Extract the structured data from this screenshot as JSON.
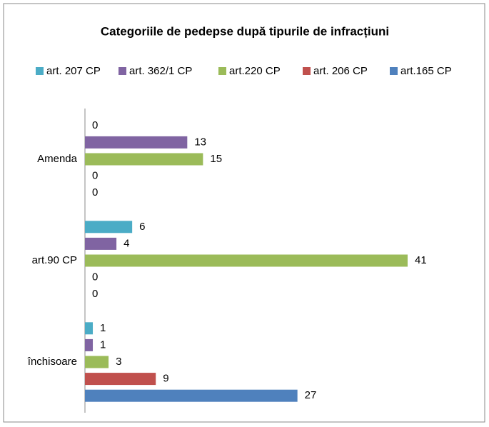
{
  "chart_data": {
    "type": "barh",
    "title": "Categoriile de pedepse după tipurile de infracțiuni",
    "categories": [
      "Amenda",
      "art.90 CP",
      "închisoare"
    ],
    "series": [
      {
        "name": "art. 207 CP",
        "color": "#4bacc6",
        "values": [
          0,
          6,
          1
        ]
      },
      {
        "name": "art. 362/1 CP",
        "color": "#8064a2",
        "values": [
          13,
          4,
          1
        ]
      },
      {
        "name": "art.220 CP",
        "color": "#9bbb59",
        "values": [
          15,
          41,
          3
        ]
      },
      {
        "name": "art. 206 CP",
        "color": "#c0504d",
        "values": [
          0,
          0,
          9
        ]
      },
      {
        "name": "art.165 CP",
        "color": "#4f81bd",
        "values": [
          0,
          0,
          27
        ]
      }
    ],
    "legend": "top"
  }
}
